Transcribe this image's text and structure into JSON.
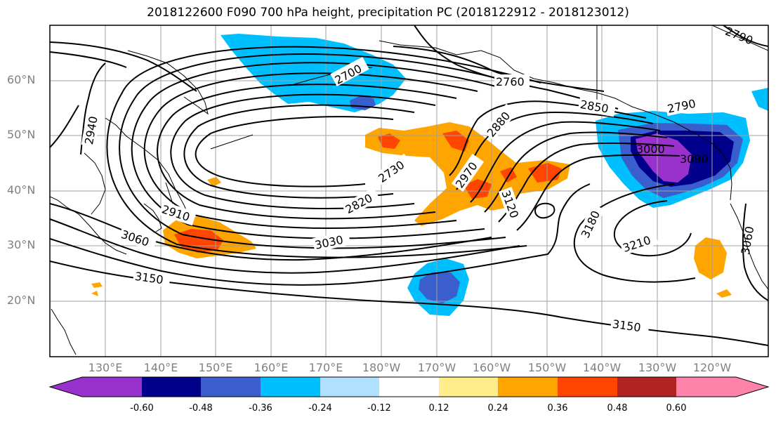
{
  "title": "2018122600 F090 700 hPa height, precipitation PC (2018122912 - 2018123012)",
  "lat_labels": [
    "60°N",
    "50°N",
    "40°N",
    "30°N",
    "20°N"
  ],
  "lon_labels": [
    "130°E",
    "140°E",
    "150°E",
    "160°E",
    "170°E",
    "180°W",
    "170°W",
    "160°W",
    "150°W",
    "140°W",
    "130°W",
    "120°W"
  ],
  "contour_labels": [
    "2700",
    "2760",
    "2790",
    "2790",
    "2850",
    "2880",
    "2940",
    "2910",
    "3060",
    "3030",
    "2820",
    "2730",
    "2970",
    "3120",
    "3180",
    "3210",
    "3150",
    "3150",
    "3000",
    "3090",
    "3060"
  ],
  "colorbar": {
    "colors": [
      "#9932cc",
      "#00008b",
      "#3a5fcd",
      "#00bfff",
      "#b0e2ff",
      "#ffffff",
      "#ffec8b",
      "#ffa500",
      "#ff4500",
      "#b22222",
      "#ff82ab"
    ],
    "tick_labels": [
      "-0.60",
      "-0.48",
      "-0.36",
      "-0.24",
      "-0.12",
      "0.12",
      "0.24",
      "0.36",
      "0.48",
      "0.60"
    ]
  }
}
